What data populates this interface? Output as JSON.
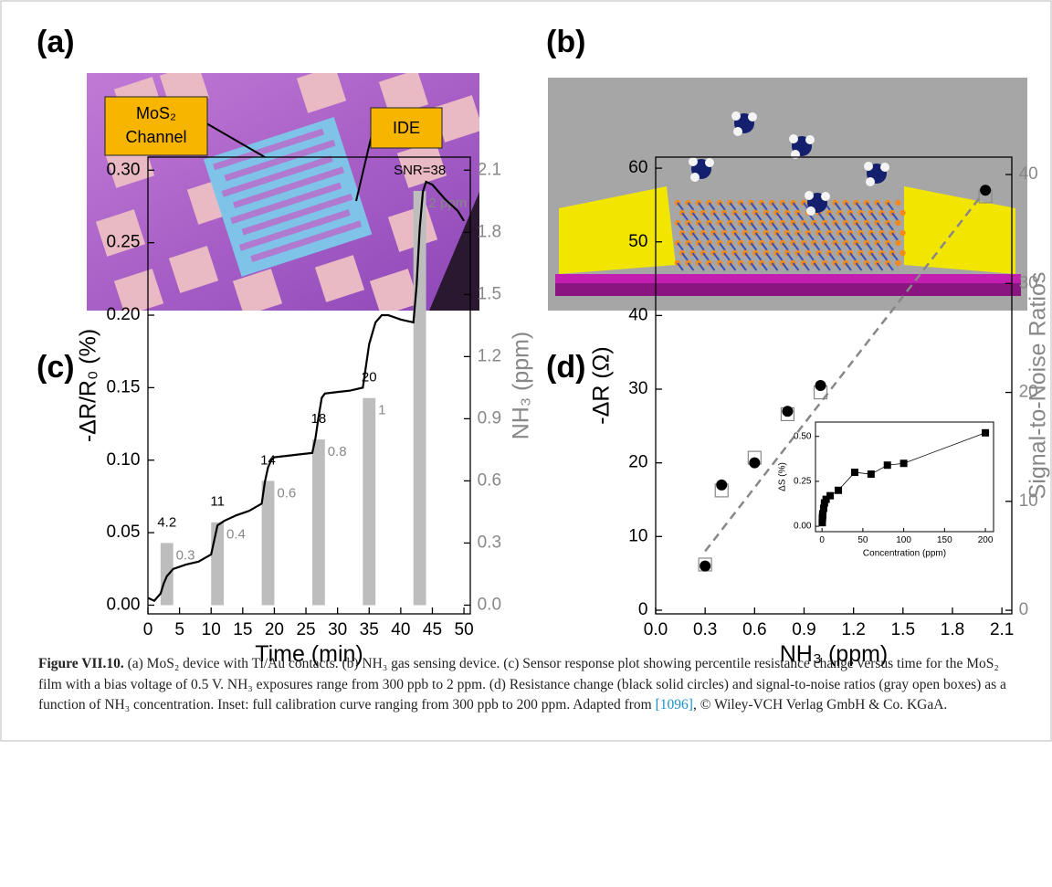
{
  "panels": {
    "a": {
      "label": "(a)",
      "callout_channel": [
        "MoS₂",
        "Channel"
      ],
      "callout_ide": "IDE"
    },
    "b": {
      "label": "(b)"
    },
    "c": {
      "label": "(c)"
    },
    "d": {
      "label": "(d)"
    }
  },
  "chart_data": [
    {
      "type": "line",
      "xlabel": "Time (min)",
      "ylabel": "-ΔR/R₀ (%)",
      "y2label": "NH₃ (ppm)",
      "color": "#000000",
      "x": [
        0,
        1,
        2,
        2.5,
        3,
        4,
        6,
        8,
        10,
        10.5,
        11,
        12,
        14,
        16,
        18,
        18.5,
        19,
        19.5,
        20,
        22,
        24,
        26,
        26.5,
        27,
        27.5,
        28,
        30,
        32,
        34,
        34.5,
        35,
        36,
        37,
        38,
        40,
        42,
        42.5,
        43,
        43.5,
        44,
        45,
        47,
        49,
        50
      ],
      "values": [
        0.005,
        0.003,
        0.008,
        0.015,
        0.02,
        0.025,
        0.028,
        0.03,
        0.035,
        0.045,
        0.055,
        0.058,
        0.062,
        0.065,
        0.07,
        0.085,
        0.095,
        0.1,
        0.102,
        0.103,
        0.104,
        0.105,
        0.115,
        0.13,
        0.143,
        0.146,
        0.147,
        0.148,
        0.15,
        0.165,
        0.18,
        0.195,
        0.2,
        0.2,
        0.197,
        0.195,
        0.22,
        0.26,
        0.285,
        0.292,
        0.29,
        0.28,
        0.272,
        0.265
      ],
      "bars": {
        "x": [
          3,
          11,
          19,
          27,
          35,
          43
        ],
        "values": [
          0.3,
          0.4,
          0.6,
          0.8,
          1,
          2
        ],
        "value_labels": [
          "0.3",
          "0.4",
          "0.6",
          "0.8",
          "1",
          "2 ppm"
        ],
        "axis": "y2",
        "color": "#bdbdbd"
      },
      "annotations": [
        "4.2",
        "11",
        "14",
        "18",
        "20",
        "SNR=38"
      ],
      "xlim": [
        0,
        51
      ],
      "xticks": [
        0,
        5,
        10,
        15,
        20,
        25,
        30,
        35,
        40,
        45,
        50
      ],
      "ylim": [
        -0.006,
        0.309
      ],
      "yticks": [
        {
          "value": 0,
          "label": "0.00"
        },
        0.05,
        {
          "value": 0.1,
          "label": "0.10"
        },
        0.15,
        {
          "value": 0.2,
          "label": "0.20"
        },
        0.25,
        {
          "value": 0.3,
          "label": "0.30"
        }
      ],
      "y2lim": [
        -0.042,
        2.163
      ],
      "y2ticks": [
        {
          "value": 0,
          "label": "0.0"
        },
        0.3,
        0.6,
        0.9,
        1.2,
        1.5,
        1.8,
        2.1
      ]
    },
    {
      "type": "scatter",
      "xlabel": "NH₃ (ppm)",
      "ylabel": "-ΔR (Ω)",
      "y2label": "Signal-to-Noise Ratios",
      "color": "#000000",
      "x": [
        0.3,
        0.4,
        0.6,
        0.8,
        1.0,
        2.0
      ],
      "values": [
        6,
        17,
        20,
        27,
        30.5,
        57
      ],
      "snr": {
        "values": [
          4.2,
          11,
          14,
          18,
          20,
          38
        ],
        "axis": "y2",
        "color": "#888888"
      },
      "fit_line": {
        "x": [
          0.3,
          2.0
        ],
        "values": [
          8,
          57
        ],
        "color": "#888888"
      },
      "xlim": [
        0,
        2.16
      ],
      "xticks": [
        {
          "value": 0,
          "label": "0.0"
        },
        0.3,
        0.6,
        0.9,
        1.2,
        1.5,
        1.8,
        2.1
      ],
      "ylim": [
        -0.5,
        61.5
      ],
      "yticks": [
        0,
        10,
        20,
        30,
        40,
        50,
        60
      ],
      "y2lim": [
        -0.33,
        41.6
      ],
      "y2ticks": [
        0,
        10,
        20,
        30,
        40
      ]
    },
    {
      "type": "scatter",
      "xlabel": "Concentration (ppm)",
      "ylabel": "ΔS (%)",
      "color": "#000000",
      "x": [
        0.3,
        0.4,
        0.6,
        0.8,
        1,
        2,
        3,
        5,
        10,
        20,
        40,
        60,
        80,
        100,
        200
      ],
      "values": [
        0.02,
        0.04,
        0.05,
        0.06,
        0.07,
        0.1,
        0.13,
        0.15,
        0.17,
        0.2,
        0.3,
        0.29,
        0.34,
        0.35,
        0.52
      ],
      "xlim": [
        -8,
        210
      ],
      "xticks": [
        0,
        50,
        100,
        150,
        200
      ],
      "ylim": [
        -0.03,
        0.58
      ],
      "yticks": [
        {
          "value": 0,
          "label": "0.00"
        },
        0.25,
        {
          "value": 0.5,
          "label": "0.50"
        }
      ]
    }
  ],
  "caption": {
    "label": "Figure VII.10.",
    "text": " (a) MoS₂ device with Ti/Au contacts. (b) NH₃ gas sensing device. (c) Sensor response plot showing percentile resistance change versus time for the MoS₂ film with a bias voltage of 0.5 V. NH₃ exposures range from 300 ppb to 2 ppm. (d) Resistance change (black solid circles) and signal-to-noise ratios (gray open boxes) as a function of NH₃ concentration. Inset: full calibration curve ranging from 300 ppb to 200 ppm. Adapted from ",
    "ref": "[1096]",
    "text_end": ", © Wiley-VCH Verlag GmbH & Co. KGaA."
  }
}
